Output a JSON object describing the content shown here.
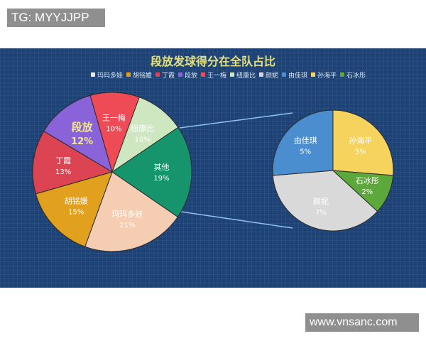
{
  "watermarks": {
    "top_left": "TG: MYYJJPP",
    "bottom_right": "www.vnsanc.com"
  },
  "chart_data": {
    "type": "pie-of-pie",
    "title": "段放发球得分在全队占比",
    "legend_position": "top",
    "legend": [
      "玛玛多娃",
      "胡铭媛",
      "丁霞",
      "段放",
      "王一梅",
      "纽康比",
      "颜妮",
      "由佳琪",
      "孙海平",
      "石冰彤"
    ],
    "main_pie": [
      {
        "label": "玛玛多娃",
        "value": 21,
        "text": "21%",
        "color": "#f5cdb2"
      },
      {
        "label": "胡铭媛",
        "value": 15,
        "text": "15%",
        "color": "#e1a01e"
      },
      {
        "label": "丁霞",
        "value": 13,
        "text": "13%",
        "color": "#dc4454"
      },
      {
        "label": "段放",
        "value": 12,
        "text": "12%",
        "color": "#8a63d8"
      },
      {
        "label": "王一梅",
        "value": 10,
        "text": "10%",
        "color": "#ee4b57"
      },
      {
        "label": "纽康比",
        "value": 10,
        "text": "10%",
        "color": "#cfe7c1"
      },
      {
        "label": "其他",
        "value": 19,
        "text": "19%",
        "color": "#16946c"
      }
    ],
    "secondary_pie": [
      {
        "label": "孙海平",
        "value": 5,
        "text": "5%",
        "color": "#f6d35c"
      },
      {
        "label": "石冰彤",
        "value": 2,
        "text": "2%",
        "color": "#5da83a"
      },
      {
        "label": "颜妮",
        "value": 7,
        "text": "7%",
        "color": "#d9d9d9"
      },
      {
        "label": "由佳琪",
        "value": 5,
        "text": "5%",
        "color": "#4b8ed0"
      }
    ]
  }
}
